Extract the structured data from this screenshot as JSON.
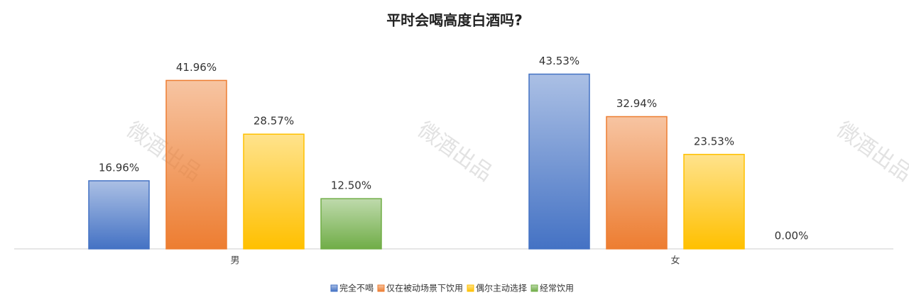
{
  "chart_data": {
    "type": "bar",
    "title": "平时会喝高度白酒吗?",
    "watermark": "微酒出品",
    "categories": [
      "男",
      "女"
    ],
    "series": [
      {
        "name": "完全不喝",
        "color": "#4472c4",
        "values": [
          16.96,
          43.53
        ],
        "value_labels": [
          "16.96%",
          "43.53%"
        ]
      },
      {
        "name": "仅在被动场景下饮用",
        "color": "#ed7d31",
        "values": [
          41.96,
          32.94
        ],
        "value_labels": [
          "41.96%",
          "32.94%"
        ]
      },
      {
        "name": "偶尔主动选择",
        "color": "#ffc000",
        "values": [
          28.57,
          23.53
        ],
        "value_labels": [
          "28.57%",
          "23.53%"
        ]
      },
      {
        "name": "经常饮用",
        "color": "#70ad47",
        "values": [
          12.5,
          0
        ],
        "value_labels": [
          "12.50%",
          "0.00%"
        ]
      }
    ]
  }
}
